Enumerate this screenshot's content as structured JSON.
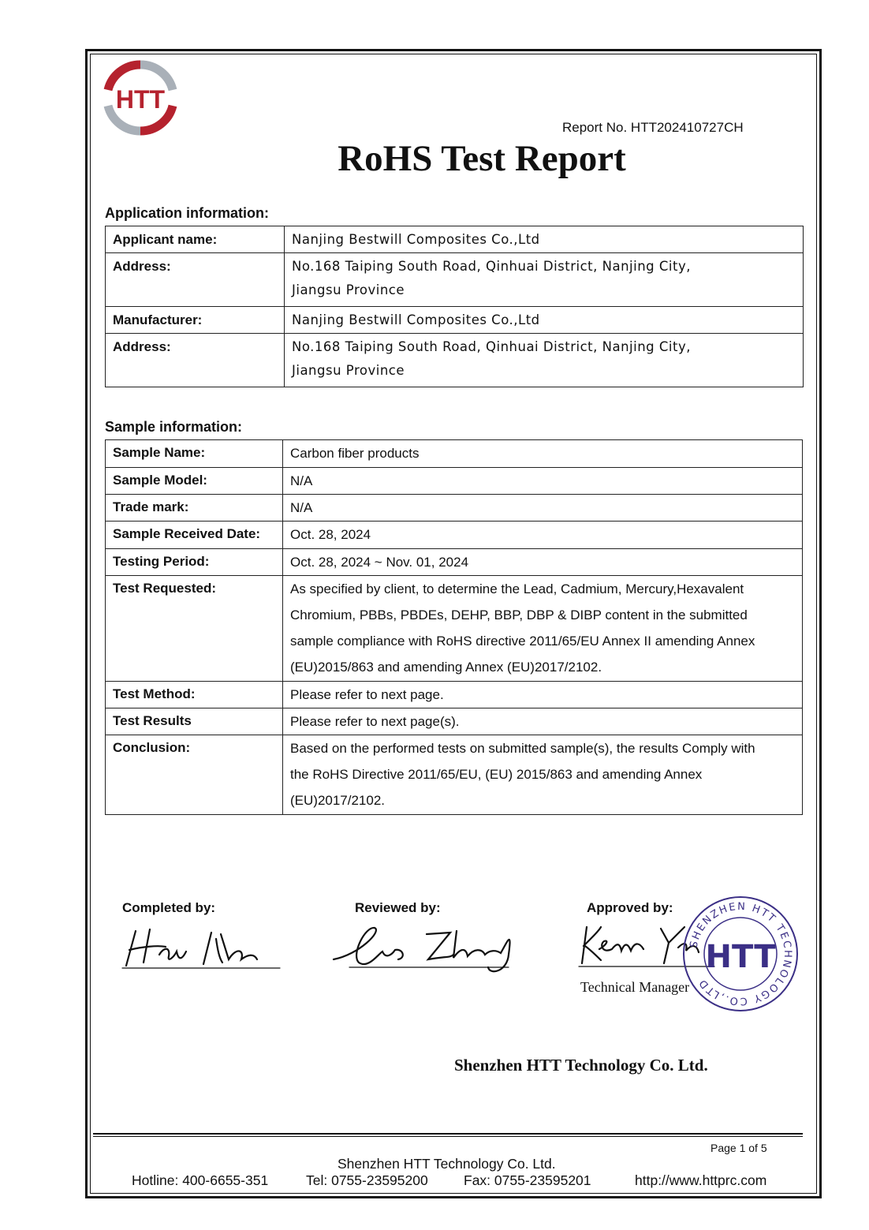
{
  "logo": {
    "text": "HTT",
    "colors": {
      "red": "#b5222e",
      "gray": "#a9b0b8"
    }
  },
  "report_no": "Report No. HTT202410727CH",
  "title": "RoHS Test Report",
  "application": {
    "heading": "Application information:",
    "rows": [
      {
        "label": "Applicant name:",
        "value": [
          "Nanjing Bestwill Composites Co.,Ltd"
        ]
      },
      {
        "label": "Address:",
        "value": [
          "No.168 Taiping South Road, Qinhuai District, Nanjing City,",
          "Jiangsu Province"
        ]
      },
      {
        "label": "Manufacturer:",
        "value": [
          "Nanjing Bestwill Composites Co.,Ltd"
        ]
      },
      {
        "label": "Address:",
        "value": [
          "No.168 Taiping South Road, Qinhuai District, Nanjing City,",
          "Jiangsu Province"
        ]
      }
    ]
  },
  "sample": {
    "heading": "Sample information:",
    "rows": [
      {
        "label": "Sample Name:",
        "value": [
          "Carbon fiber products"
        ]
      },
      {
        "label": "Sample Model:",
        "value": [
          "N/A"
        ]
      },
      {
        "label": "Trade mark:",
        "value": [
          "N/A"
        ]
      },
      {
        "label": "Sample Received Date:",
        "value": [
          "Oct. 28, 2024"
        ]
      },
      {
        "label": "Testing Period:",
        "value": [
          "Oct. 28, 2024 ~ Nov. 01, 2024"
        ]
      },
      {
        "label": "Test Requested:",
        "value": [
          "As specified by client, to determine the Lead, Cadmium, Mercury,Hexavalent",
          "Chromium, PBBs, PBDEs, DEHP, BBP, DBP & DIBP content in the submitted",
          "sample compliance with RoHS directive 2011/65/EU Annex II amending Annex",
          "(EU)2015/863 and amending Annex (EU)2017/2102."
        ]
      },
      {
        "label": "Test Method:",
        "value": [
          "Please refer to next page."
        ]
      },
      {
        "label": "Test Results",
        "value": [
          "Please refer to next page(s)."
        ]
      },
      {
        "label": "Conclusion:",
        "value": [
          "Based on the performed tests on submitted sample(s), the results Comply with",
          "the RoHS Directive 2011/65/EU, (EU) 2015/863 and amending Annex",
          "(EU)2017/2102."
        ]
      }
    ]
  },
  "signatures": {
    "completed": "Completed by:",
    "reviewed": "Reviewed by:",
    "approved": "Approved by:",
    "approver_title": "Technical Manager",
    "signer_names": [
      "Hao Ma",
      "Leo Zhang",
      "Kevin Yang"
    ]
  },
  "stamp": {
    "ring_text": "SHENZHEN HTT TECHNOLOGY CO.,LTD",
    "center": "HTT",
    "color": "#3b2f86"
  },
  "company": "Shenzhen HTT Technology Co. Ltd.",
  "footer": {
    "page": "Page 1 of 5",
    "company": "Shenzhen HTT Technology Co. Ltd.",
    "hotline": "Hotline: 400-6655-351",
    "tel": "Tel: 0755-23595200",
    "fax": "Fax: 0755-23595201",
    "url": "http://www.httprc.com"
  }
}
